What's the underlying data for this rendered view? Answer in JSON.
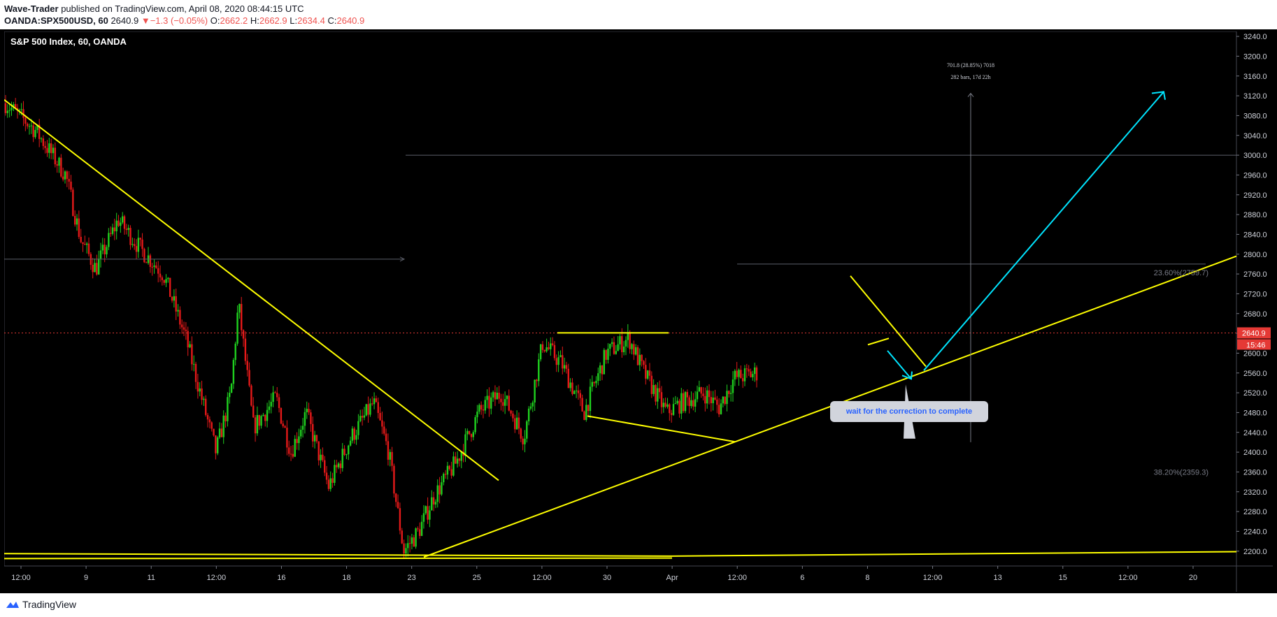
{
  "header": {
    "author": "Wave-Trader",
    "published": "published on TradingView.com, April 08, 2020 08:44:15 UTC",
    "symbol": "OANDA:SPX500USD, 60",
    "last": "2640.9",
    "change_arrow": "▼",
    "change": "−1.3 (−0.05%)",
    "o_label": "O:",
    "o_value": "2662.2",
    "h_label": "H:",
    "h_value": "2662.9",
    "l_label": "L:",
    "l_value": "2634.4",
    "c_label": "C:",
    "c_value": "2640.9"
  },
  "footer": {
    "brand": "TradingView",
    "icon": "tradingview-logo-icon"
  },
  "colors": {
    "background": "#000000",
    "up_candle": "#1fd11f",
    "down_candle": "#e51919",
    "trendline": "#ffff00",
    "projection_arrow": "#00e5ff",
    "price_tag": "#e53935",
    "note_text": "#2962ff",
    "note_bg": "#d1d4dc"
  },
  "annotations": {
    "measure_line1": "701.8 (28.85%) 7018",
    "measure_line2": "282 bars, 17d 22h",
    "fib_236": "23.60%(2759.7)",
    "fib_382": "38.20%(2359.3)",
    "note": "wait for the correction to complete"
  },
  "chart_data": {
    "type": "candlestick",
    "title": "S&P 500 Index, 60, OANDA",
    "ylim": [
      2170,
      3250
    ],
    "y_ticks": [
      2200,
      2240,
      2280,
      2320,
      2360,
      2400,
      2440,
      2480,
      2520,
      2560,
      2600,
      2640,
      2680,
      2720,
      2760,
      2800,
      2840,
      2880,
      2920,
      2960,
      3000,
      3040,
      3080,
      3120,
      3160,
      3200,
      3240
    ],
    "x_ticks": [
      "12:00",
      "9",
      "11",
      "12:00",
      "16",
      "18",
      "23",
      "25",
      "12:00",
      "30",
      "Apr",
      "12:00",
      "6",
      "8",
      "12:00",
      "13",
      "15",
      "12:00",
      "20"
    ],
    "last_price": 2640.9,
    "countdown": "15:46",
    "price_path": [
      [
        0,
        3105
      ],
      [
        0.04,
        3050
      ],
      [
        0.08,
        2960
      ],
      [
        0.1,
        2830
      ],
      [
        0.12,
        2770
      ],
      [
        0.15,
        2870
      ],
      [
        0.18,
        2810
      ],
      [
        0.21,
        2760
      ],
      [
        0.24,
        2630
      ],
      [
        0.28,
        2400
      ],
      [
        0.3,
        2520
      ],
      [
        0.31,
        2700
      ],
      [
        0.33,
        2450
      ],
      [
        0.36,
        2510
      ],
      [
        0.38,
        2400
      ],
      [
        0.4,
        2480
      ],
      [
        0.43,
        2330
      ],
      [
        0.46,
        2430
      ],
      [
        0.49,
        2500
      ],
      [
        0.51,
        2400
      ],
      [
        0.53,
        2200
      ],
      [
        0.55,
        2240
      ],
      [
        0.57,
        2310
      ],
      [
        0.6,
        2380
      ],
      [
        0.63,
        2480
      ],
      [
        0.66,
        2520
      ],
      [
        0.69,
        2430
      ],
      [
        0.715,
        2620
      ],
      [
        0.74,
        2580
      ],
      [
        0.77,
        2480
      ],
      [
        0.8,
        2600
      ],
      [
        0.83,
        2630
      ],
      [
        0.85,
        2560
      ],
      [
        0.88,
        2480
      ],
      [
        0.9,
        2500
      ],
      [
        0.93,
        2520
      ],
      [
        0.95,
        2490
      ],
      [
        0.97,
        2550
      ],
      [
        1.0,
        2560
      ]
    ]
  }
}
